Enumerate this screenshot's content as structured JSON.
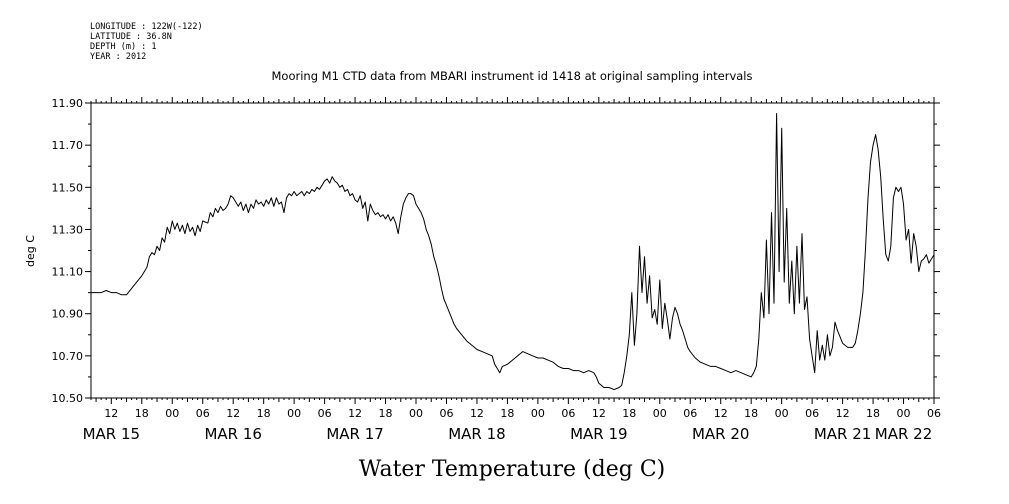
{
  "meta": {
    "longitude": "LONGITUDE : 122W(-122)",
    "latitude": "LATITUDE : 36.8N",
    "depth": "DEPTH (m) : 1",
    "year": "YEAR : 2012"
  },
  "caption": "Water Temperature (deg C)",
  "colors": {
    "line": "#000000",
    "background": "#ffffff"
  },
  "chart_data": {
    "type": "line",
    "title": "Mooring M1 CTD data from MBARI instrument id 1418 at original sampling intervals",
    "xlabel": "",
    "ylabel": "deg C",
    "ylim": [
      10.5,
      11.9
    ],
    "xlim_hours": [
      8,
      174
    ],
    "x_units": "hours since MAR 15 00:00 (2012)",
    "y_ticks": [
      "10.50",
      "10.70",
      "10.90",
      "11.10",
      "11.30",
      "11.50",
      "11.70",
      "11.90"
    ],
    "x_tick_labels": [
      {
        "h": 12,
        "label": "12"
      },
      {
        "h": 18,
        "label": "18"
      },
      {
        "h": 24,
        "label": "00"
      },
      {
        "h": 30,
        "label": "06"
      },
      {
        "h": 36,
        "label": "12"
      },
      {
        "h": 42,
        "label": "18"
      },
      {
        "h": 48,
        "label": "00"
      },
      {
        "h": 54,
        "label": "06"
      },
      {
        "h": 60,
        "label": "12"
      },
      {
        "h": 66,
        "label": "18"
      },
      {
        "h": 72,
        "label": "00"
      },
      {
        "h": 78,
        "label": "06"
      },
      {
        "h": 84,
        "label": "12"
      },
      {
        "h": 90,
        "label": "18"
      },
      {
        "h": 96,
        "label": "00"
      },
      {
        "h": 102,
        "label": "06"
      },
      {
        "h": 108,
        "label": "12"
      },
      {
        "h": 114,
        "label": "18"
      },
      {
        "h": 120,
        "label": "00"
      },
      {
        "h": 126,
        "label": "06"
      },
      {
        "h": 132,
        "label": "12"
      },
      {
        "h": 138,
        "label": "18"
      },
      {
        "h": 144,
        "label": "00"
      },
      {
        "h": 150,
        "label": "06"
      },
      {
        "h": 156,
        "label": "12"
      },
      {
        "h": 162,
        "label": "18"
      },
      {
        "h": 168,
        "label": "00"
      },
      {
        "h": 174,
        "label": "06"
      }
    ],
    "date_labels": [
      {
        "h": 12,
        "label": "MAR 15"
      },
      {
        "h": 36,
        "label": "MAR 16"
      },
      {
        "h": 60,
        "label": "MAR 17"
      },
      {
        "h": 84,
        "label": "MAR 18"
      },
      {
        "h": 108,
        "label": "MAR 19"
      },
      {
        "h": 132,
        "label": "MAR 20"
      },
      {
        "h": 156,
        "label": "MAR 21"
      },
      {
        "h": 168,
        "label": "MAR 22"
      }
    ],
    "series": [
      {
        "points": [
          [
            8,
            11.0
          ],
          [
            9,
            11.0
          ],
          [
            10,
            11.0
          ],
          [
            11,
            11.01
          ],
          [
            12,
            11.0
          ],
          [
            13,
            11.0
          ],
          [
            14,
            10.99
          ],
          [
            15,
            10.99
          ],
          [
            16,
            11.02
          ],
          [
            17,
            11.05
          ],
          [
            18,
            11.08
          ],
          [
            19,
            11.12
          ],
          [
            19.5,
            11.17
          ],
          [
            20,
            11.19
          ],
          [
            20.5,
            11.18
          ],
          [
            21,
            11.22
          ],
          [
            21.5,
            11.2
          ],
          [
            22,
            11.26
          ],
          [
            22.5,
            11.24
          ],
          [
            23,
            11.31
          ],
          [
            23.5,
            11.28
          ],
          [
            24,
            11.34
          ],
          [
            24.5,
            11.3
          ],
          [
            25,
            11.33
          ],
          [
            25.5,
            11.29
          ],
          [
            26,
            11.32
          ],
          [
            26.5,
            11.28
          ],
          [
            27,
            11.33
          ],
          [
            27.5,
            11.29
          ],
          [
            28,
            11.31
          ],
          [
            28.5,
            11.27
          ],
          [
            29,
            11.32
          ],
          [
            29.5,
            11.29
          ],
          [
            30,
            11.34
          ],
          [
            31,
            11.33
          ],
          [
            31.5,
            11.38
          ],
          [
            32,
            11.36
          ],
          [
            32.5,
            11.4
          ],
          [
            33,
            11.38
          ],
          [
            33.5,
            11.41
          ],
          [
            34,
            11.39
          ],
          [
            34.5,
            11.4
          ],
          [
            35,
            11.42
          ],
          [
            35.5,
            11.46
          ],
          [
            36,
            11.45
          ],
          [
            36.5,
            11.43
          ],
          [
            37,
            11.41
          ],
          [
            37.5,
            11.43
          ],
          [
            38,
            11.39
          ],
          [
            38.5,
            11.42
          ],
          [
            39,
            11.38
          ],
          [
            39.5,
            11.42
          ],
          [
            40,
            11.4
          ],
          [
            40.5,
            11.44
          ],
          [
            41,
            11.42
          ],
          [
            41.5,
            11.43
          ],
          [
            42,
            11.41
          ],
          [
            42.5,
            11.44
          ],
          [
            43,
            11.42
          ],
          [
            43.5,
            11.45
          ],
          [
            44,
            11.41
          ],
          [
            44.5,
            11.45
          ],
          [
            45,
            11.42
          ],
          [
            45.5,
            11.43
          ],
          [
            46,
            11.38
          ],
          [
            46.5,
            11.45
          ],
          [
            47,
            11.47
          ],
          [
            47.5,
            11.46
          ],
          [
            48,
            11.48
          ],
          [
            48.5,
            11.46
          ],
          [
            49,
            11.47
          ],
          [
            49.5,
            11.48
          ],
          [
            50,
            11.46
          ],
          [
            50.5,
            11.48
          ],
          [
            51,
            11.47
          ],
          [
            51.5,
            11.49
          ],
          [
            52,
            11.48
          ],
          [
            52.5,
            11.5
          ],
          [
            53,
            11.49
          ],
          [
            53.5,
            11.51
          ],
          [
            54,
            11.53
          ],
          [
            54.5,
            11.54
          ],
          [
            55,
            11.52
          ],
          [
            55.5,
            11.55
          ],
          [
            56,
            11.53
          ],
          [
            56.5,
            11.52
          ],
          [
            57,
            11.5
          ],
          [
            57.5,
            11.51
          ],
          [
            58,
            11.48
          ],
          [
            58.5,
            11.49
          ],
          [
            59,
            11.46
          ],
          [
            59.5,
            11.47
          ],
          [
            60,
            11.44
          ],
          [
            60.5,
            11.43
          ],
          [
            61,
            11.46
          ],
          [
            61.5,
            11.4
          ],
          [
            62,
            11.43
          ],
          [
            62.5,
            11.34
          ],
          [
            63,
            11.42
          ],
          [
            63.5,
            11.39
          ],
          [
            64,
            11.37
          ],
          [
            64.5,
            11.38
          ],
          [
            65,
            11.36
          ],
          [
            65.5,
            11.37
          ],
          [
            66,
            11.35
          ],
          [
            66.5,
            11.37
          ],
          [
            67,
            11.34
          ],
          [
            67.5,
            11.36
          ],
          [
            68,
            11.33
          ],
          [
            68.5,
            11.28
          ],
          [
            69,
            11.36
          ],
          [
            69.5,
            11.42
          ],
          [
            70,
            11.45
          ],
          [
            70.5,
            11.47
          ],
          [
            71,
            11.47
          ],
          [
            71.5,
            11.46
          ],
          [
            72,
            11.42
          ],
          [
            72.5,
            11.4
          ],
          [
            73,
            11.38
          ],
          [
            73.5,
            11.35
          ],
          [
            74,
            11.3
          ],
          [
            74.5,
            11.27
          ],
          [
            75,
            11.23
          ],
          [
            75.5,
            11.17
          ],
          [
            76,
            11.13
          ],
          [
            76.5,
            11.08
          ],
          [
            77,
            11.02
          ],
          [
            77.5,
            10.97
          ],
          [
            78,
            10.94
          ],
          [
            78.5,
            10.91
          ],
          [
            79,
            10.88
          ],
          [
            79.5,
            10.85
          ],
          [
            80,
            10.83
          ],
          [
            81,
            10.8
          ],
          [
            82,
            10.77
          ],
          [
            83,
            10.75
          ],
          [
            84,
            10.73
          ],
          [
            85,
            10.72
          ],
          [
            86,
            10.71
          ],
          [
            87,
            10.7
          ],
          [
            87.5,
            10.66
          ],
          [
            88,
            10.64
          ],
          [
            88.5,
            10.62
          ],
          [
            89,
            10.65
          ],
          [
            90,
            10.66
          ],
          [
            91,
            10.68
          ],
          [
            92,
            10.7
          ],
          [
            93,
            10.72
          ],
          [
            94,
            10.71
          ],
          [
            95,
            10.7
          ],
          [
            96,
            10.69
          ],
          [
            97,
            10.69
          ],
          [
            98,
            10.68
          ],
          [
            99,
            10.67
          ],
          [
            100,
            10.65
          ],
          [
            101,
            10.64
          ],
          [
            102,
            10.64
          ],
          [
            103,
            10.63
          ],
          [
            104,
            10.63
          ],
          [
            105,
            10.62
          ],
          [
            106,
            10.63
          ],
          [
            107,
            10.62
          ],
          [
            107.5,
            10.6
          ],
          [
            108,
            10.57
          ],
          [
            108.5,
            10.56
          ],
          [
            109,
            10.55
          ],
          [
            110,
            10.55
          ],
          [
            111,
            10.54
          ],
          [
            112,
            10.55
          ],
          [
            112.5,
            10.56
          ],
          [
            113,
            10.62
          ],
          [
            113.5,
            10.7
          ],
          [
            114,
            10.8
          ],
          [
            114.5,
            11.0
          ],
          [
            115,
            10.75
          ],
          [
            115.5,
            10.9
          ],
          [
            116,
            11.22
          ],
          [
            116.5,
            11.0
          ],
          [
            117,
            11.17
          ],
          [
            117.5,
            10.95
          ],
          [
            118,
            11.08
          ],
          [
            118.5,
            10.88
          ],
          [
            119,
            10.92
          ],
          [
            119.5,
            10.85
          ],
          [
            120,
            11.06
          ],
          [
            120.5,
            10.83
          ],
          [
            121,
            10.95
          ],
          [
            121.5,
            10.87
          ],
          [
            122,
            10.78
          ],
          [
            122.5,
            10.88
          ],
          [
            123,
            10.93
          ],
          [
            123.5,
            10.9
          ],
          [
            124,
            10.85
          ],
          [
            124.5,
            10.82
          ],
          [
            125,
            10.78
          ],
          [
            125.5,
            10.74
          ],
          [
            126,
            10.72
          ],
          [
            127,
            10.69
          ],
          [
            128,
            10.67
          ],
          [
            129,
            10.66
          ],
          [
            130,
            10.65
          ],
          [
            131,
            10.65
          ],
          [
            132,
            10.64
          ],
          [
            133,
            10.63
          ],
          [
            134,
            10.62
          ],
          [
            135,
            10.63
          ],
          [
            136,
            10.62
          ],
          [
            137,
            10.61
          ],
          [
            138,
            10.6
          ],
          [
            138.5,
            10.62
          ],
          [
            139,
            10.65
          ],
          [
            139.5,
            10.78
          ],
          [
            140,
            11.0
          ],
          [
            140.5,
            10.88
          ],
          [
            141,
            11.25
          ],
          [
            141.5,
            10.9
          ],
          [
            142,
            11.38
          ],
          [
            142.5,
            10.95
          ],
          [
            143,
            11.85
          ],
          [
            143.5,
            11.1
          ],
          [
            144,
            11.78
          ],
          [
            144.5,
            11.05
          ],
          [
            145,
            11.4
          ],
          [
            145.5,
            10.95
          ],
          [
            146,
            11.15
          ],
          [
            146.5,
            10.9
          ],
          [
            147,
            11.22
          ],
          [
            147.5,
            10.95
          ],
          [
            148,
            11.28
          ],
          [
            148.5,
            10.92
          ],
          [
            149,
            10.98
          ],
          [
            149.5,
            10.78
          ],
          [
            150,
            10.7
          ],
          [
            150.5,
            10.62
          ],
          [
            151,
            10.82
          ],
          [
            151.5,
            10.68
          ],
          [
            152,
            10.75
          ],
          [
            152.5,
            10.68
          ],
          [
            153,
            10.8
          ],
          [
            153.5,
            10.7
          ],
          [
            154,
            10.74
          ],
          [
            154.5,
            10.86
          ],
          [
            155,
            10.82
          ],
          [
            155.5,
            10.79
          ],
          [
            156,
            10.76
          ],
          [
            157,
            10.74
          ],
          [
            158,
            10.74
          ],
          [
            158.5,
            10.76
          ],
          [
            159,
            10.82
          ],
          [
            159.5,
            10.9
          ],
          [
            160,
            11.0
          ],
          [
            160.5,
            11.2
          ],
          [
            161,
            11.45
          ],
          [
            161.5,
            11.62
          ],
          [
            162,
            11.7
          ],
          [
            162.5,
            11.75
          ],
          [
            163,
            11.68
          ],
          [
            163.5,
            11.55
          ],
          [
            164,
            11.35
          ],
          [
            164.5,
            11.18
          ],
          [
            165,
            11.15
          ],
          [
            165.5,
            11.22
          ],
          [
            166,
            11.45
          ],
          [
            166.5,
            11.5
          ],
          [
            167,
            11.48
          ],
          [
            167.5,
            11.5
          ],
          [
            168,
            11.42
          ],
          [
            168.5,
            11.25
          ],
          [
            169,
            11.3
          ],
          [
            169.5,
            11.14
          ],
          [
            170,
            11.28
          ],
          [
            170.5,
            11.22
          ],
          [
            171,
            11.1
          ],
          [
            171.5,
            11.15
          ],
          [
            172,
            11.16
          ],
          [
            172.5,
            11.18
          ],
          [
            173,
            11.14
          ],
          [
            173.5,
            11.16
          ],
          [
            174,
            11.18
          ]
        ]
      }
    ]
  }
}
